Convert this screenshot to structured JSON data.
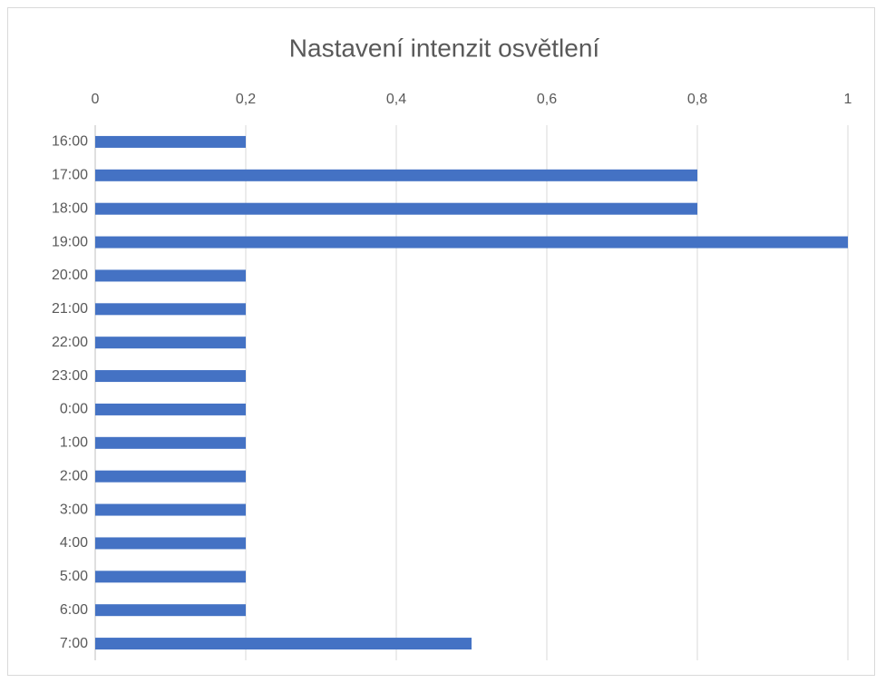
{
  "chart_data": {
    "type": "barh",
    "title": "Nastavení intenzit osvětlení",
    "categories": [
      "16:00",
      "17:00",
      "18:00",
      "19:00",
      "20:00",
      "21:00",
      "22:00",
      "23:00",
      "0:00",
      "1:00",
      "2:00",
      "3:00",
      "4:00",
      "5:00",
      "6:00",
      "7:00"
    ],
    "values": [
      0.2,
      0.8,
      0.8,
      1,
      0.2,
      0.2,
      0.2,
      0.2,
      0.2,
      0.2,
      0.2,
      0.2,
      0.2,
      0.2,
      0.2,
      0.5
    ],
    "color": "#4472c4",
    "xlim": [
      0,
      1
    ],
    "xticks": [
      0,
      {
        "value": 0.2,
        "label": "0,2"
      },
      {
        "value": 0.4,
        "label": "0,4"
      },
      {
        "value": 0.6,
        "label": "0,6"
      },
      {
        "value": 0.8,
        "label": "0,8"
      },
      1
    ],
    "grid": true
  }
}
